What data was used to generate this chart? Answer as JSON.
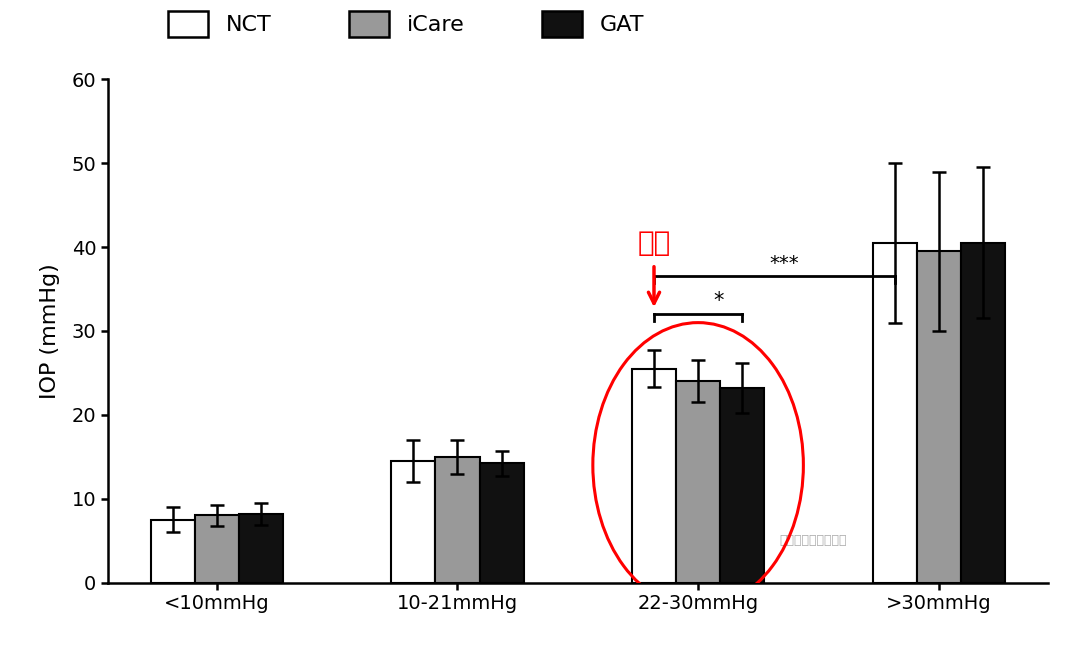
{
  "categories": [
    "<10mmHg",
    "10-21mmHg",
    "22-30mmHg",
    ">30mmHg"
  ],
  "nct_values": [
    7.5,
    14.5,
    25.5,
    40.5
  ],
  "icare_values": [
    8.0,
    15.0,
    24.0,
    39.5
  ],
  "gat_values": [
    8.2,
    14.2,
    23.2,
    40.5
  ],
  "nct_errors": [
    1.5,
    2.5,
    2.2,
    9.5
  ],
  "icare_errors": [
    1.2,
    2.0,
    2.5,
    9.5
  ],
  "gat_errors": [
    1.3,
    1.5,
    3.0,
    9.0
  ],
  "nct_color": "#ffffff",
  "icare_color": "#999999",
  "gat_color": "#111111",
  "bar_edge_color": "#000000",
  "ylabel": "IOP (mmHg)",
  "ylim": [
    0,
    60
  ],
  "yticks": [
    0,
    10,
    20,
    30,
    40,
    50,
    60
  ],
  "legend_labels": [
    "NCT",
    "iCare",
    "GAT"
  ],
  "annotation_text": "偏高",
  "sig_stars_top": "***",
  "sig_stars_bottom": "*",
  "background_color": "#ffffff",
  "bar_width": 0.22,
  "axis_fontsize": 16,
  "tick_fontsize": 14,
  "legend_fontsize": 16,
  "watermark": "梅医生的视光工作室"
}
